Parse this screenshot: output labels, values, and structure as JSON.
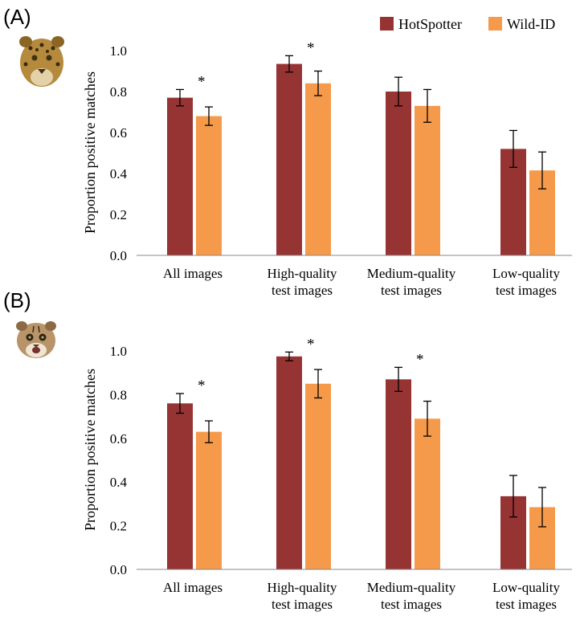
{
  "legend": {
    "items": [
      {
        "label": "HotSpotter",
        "color": "#963434"
      },
      {
        "label": "Wild-ID",
        "color": "#f59a4a"
      }
    ]
  },
  "chart_data": [
    {
      "type": "bar",
      "panel_label": "(A)",
      "animal_icon": "jaguar-face-icon",
      "ylabel": "Proportion positive matches",
      "ylim": [
        0,
        1.0
      ],
      "yticks": [
        "0.0",
        "0.2",
        "0.4",
        "0.6",
        "0.8",
        "1.0"
      ],
      "grid": false,
      "categories": [
        [
          "All images"
        ],
        [
          "High-quality",
          "test images"
        ],
        [
          "Medium-quality",
          "test images"
        ],
        [
          "Low-quality",
          "test images"
        ]
      ],
      "series": [
        {
          "name": "HotSpotter",
          "values": [
            0.77,
            0.935,
            0.8,
            0.52
          ],
          "errors": [
            0.04,
            0.04,
            0.07,
            0.09
          ]
        },
        {
          "name": "Wild-ID",
          "values": [
            0.68,
            0.84,
            0.73,
            0.415
          ],
          "errors": [
            0.045,
            0.06,
            0.08,
            0.09
          ]
        }
      ],
      "significance": [
        "*",
        "*",
        "",
        ""
      ]
    },
    {
      "type": "bar",
      "panel_label": "(B)",
      "animal_icon": "ocelot-face-icon",
      "ylabel": "Proportion positive matches",
      "ylim": [
        0,
        1.0
      ],
      "yticks": [
        "0.0",
        "0.2",
        "0.4",
        "0.6",
        "0.8",
        "1.0"
      ],
      "grid": false,
      "categories": [
        [
          "All images"
        ],
        [
          "High-quality",
          "test images"
        ],
        [
          "Medium-quality",
          "test images"
        ],
        [
          "Low-quality",
          "test images"
        ]
      ],
      "series": [
        {
          "name": "HotSpotter",
          "values": [
            0.76,
            0.975,
            0.87,
            0.335
          ],
          "errors": [
            0.045,
            0.02,
            0.055,
            0.095
          ]
        },
        {
          "name": "Wild-ID",
          "values": [
            0.63,
            0.85,
            0.69,
            0.285
          ],
          "errors": [
            0.05,
            0.065,
            0.08,
            0.09
          ]
        }
      ],
      "significance": [
        "*",
        "*",
        "*",
        ""
      ]
    }
  ]
}
